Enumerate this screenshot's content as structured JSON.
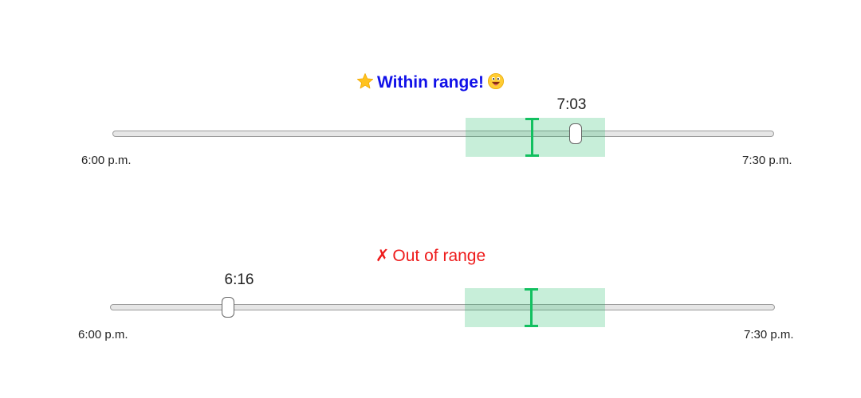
{
  "slider_top": {
    "status": {
      "text": "Within range!",
      "star_icon": "star-icon",
      "face_icon": "grinning-face-icon",
      "color": "#1010e8"
    },
    "value_label": "7:03",
    "min_label": "6:00 p.m.",
    "max_label": "7:30 p.m.",
    "range_minutes": [
      0,
      90
    ],
    "value_minutes": 63,
    "target_minutes": 57,
    "target_band_minutes": [
      48,
      67
    ]
  },
  "slider_bottom": {
    "status": {
      "text": "Out of range",
      "cross_icon": "✗",
      "color": "#ee1c1c"
    },
    "value_label": "6:16",
    "min_label": "6:00 p.m.",
    "max_label": "7:30 p.m.",
    "range_minutes": [
      0,
      90
    ],
    "value_minutes": 16,
    "target_minutes": 57,
    "target_band_minutes": [
      48,
      67
    ]
  },
  "colors": {
    "target_band": "#c8efda",
    "target_marker": "#12c060",
    "track": "#e6e6e6"
  }
}
